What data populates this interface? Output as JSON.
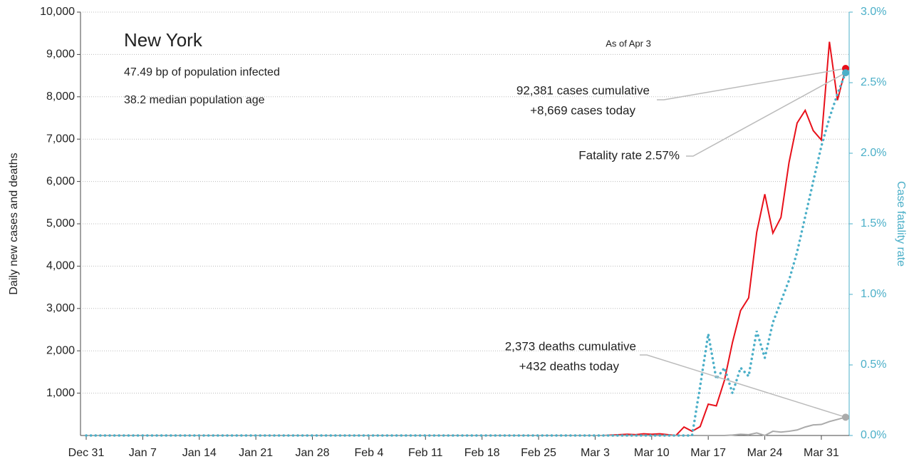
{
  "chart_data": {
    "type": "line",
    "title": "New York",
    "subtitle": [
      "47.49 bp of population infected",
      "38.2 median population age"
    ],
    "note": "As of Apr 3",
    "ylabel": "Daily new cases and deaths",
    "y2label": "Case fatality rate",
    "annotations": {
      "cases": [
        "92,381 cases cumulative",
        "+8,669 cases today"
      ],
      "rate": "Fatality rate 2.57%",
      "deaths": [
        "2,373 deaths cumulative",
        "+432 deaths today"
      ]
    },
    "categories": [
      "Dec 31",
      null,
      null,
      null,
      null,
      null,
      null,
      "Jan 7",
      null,
      null,
      null,
      null,
      null,
      null,
      "Jan 14",
      null,
      null,
      null,
      null,
      null,
      null,
      "Jan 21",
      null,
      null,
      null,
      null,
      null,
      null,
      "Jan 28",
      null,
      null,
      null,
      null,
      null,
      null,
      "Feb 4",
      null,
      null,
      null,
      null,
      null,
      null,
      "Feb 11",
      null,
      null,
      null,
      null,
      null,
      null,
      "Feb 18",
      null,
      null,
      null,
      null,
      null,
      null,
      "Feb 25",
      null,
      null,
      null,
      null,
      null,
      null,
      "Mar 3",
      null,
      null,
      null,
      null,
      null,
      null,
      "Mar 10",
      null,
      null,
      null,
      null,
      null,
      null,
      "Mar 17",
      null,
      null,
      null,
      null,
      null,
      null,
      "Mar 24",
      null,
      null,
      null,
      null,
      null,
      null,
      "Mar 31",
      null,
      null,
      null
    ],
    "series": [
      {
        "name": "Daily new cases",
        "color": "#e8101a",
        "style": "solid",
        "values": [
          0,
          0,
          0,
          0,
          0,
          0,
          0,
          0,
          0,
          0,
          0,
          0,
          0,
          0,
          0,
          0,
          0,
          0,
          0,
          0,
          0,
          0,
          0,
          0,
          0,
          0,
          0,
          0,
          0,
          0,
          0,
          0,
          0,
          0,
          0,
          0,
          0,
          0,
          0,
          0,
          0,
          0,
          0,
          0,
          0,
          0,
          0,
          0,
          0,
          0,
          0,
          0,
          0,
          0,
          0,
          0,
          0,
          0,
          0,
          0,
          0,
          0,
          0,
          0,
          0,
          10,
          20,
          30,
          20,
          40,
          30,
          40,
          20,
          0,
          200,
          100,
          210,
          740,
          700,
          1300,
          2200,
          2950,
          3250,
          4800,
          5700,
          4780,
          5150,
          6450,
          7380,
          7680,
          7200,
          6980,
          9300,
          7920,
          8669
        ]
      },
      {
        "name": "Daily new deaths",
        "color": "#aaaaaa",
        "style": "solid",
        "values": [
          0,
          0,
          0,
          0,
          0,
          0,
          0,
          0,
          0,
          0,
          0,
          0,
          0,
          0,
          0,
          0,
          0,
          0,
          0,
          0,
          0,
          0,
          0,
          0,
          0,
          0,
          0,
          0,
          0,
          0,
          0,
          0,
          0,
          0,
          0,
          0,
          0,
          0,
          0,
          0,
          0,
          0,
          0,
          0,
          0,
          0,
          0,
          0,
          0,
          0,
          0,
          0,
          0,
          0,
          0,
          0,
          0,
          0,
          0,
          0,
          0,
          0,
          0,
          0,
          0,
          0,
          0,
          0,
          0,
          0,
          0,
          0,
          0,
          0,
          0,
          0,
          0,
          0,
          0,
          0,
          10,
          30,
          20,
          60,
          0,
          100,
          80,
          100,
          130,
          200,
          250,
          260,
          330,
          380,
          432
        ]
      },
      {
        "name": "Case fatality rate",
        "color": "#4bafc8",
        "style": "dotted",
        "axis": "y2",
        "values": [
          0,
          0,
          0,
          0,
          0,
          0,
          0,
          0,
          0,
          0,
          0,
          0,
          0,
          0,
          0,
          0,
          0,
          0,
          0,
          0,
          0,
          0,
          0,
          0,
          0,
          0,
          0,
          0,
          0,
          0,
          0,
          0,
          0,
          0,
          0,
          0,
          0,
          0,
          0,
          0,
          0,
          0,
          0,
          0,
          0,
          0,
          0,
          0,
          0,
          0,
          0,
          0,
          0,
          0,
          0,
          0,
          0,
          0,
          0,
          0,
          0,
          0,
          0,
          0,
          0,
          0,
          0,
          0,
          0,
          0,
          0,
          0,
          0,
          0,
          0,
          0,
          0.35,
          0.72,
          0.4,
          0.48,
          0.3,
          0.48,
          0.42,
          0.74,
          0.55,
          0.8,
          0.95,
          1.1,
          1.3,
          1.55,
          1.8,
          2.05,
          2.25,
          2.42,
          2.57
        ]
      }
    ],
    "ylim": [
      0,
      10000
    ],
    "yticks": [
      {
        "value": 1000,
        "label": "1,000"
      },
      {
        "value": 2000,
        "label": "2,000"
      },
      {
        "value": 3000,
        "label": "3,000"
      },
      {
        "value": 4000,
        "label": "4,000"
      },
      {
        "value": 5000,
        "label": "5,000"
      },
      {
        "value": 6000,
        "label": "6,000"
      },
      {
        "value": 7000,
        "label": "7,000"
      },
      {
        "value": 8000,
        "label": "8,000"
      },
      {
        "value": 9000,
        "label": "9,000"
      },
      {
        "value": 10000,
        "label": "10,000"
      }
    ],
    "y2lim": [
      0,
      3
    ],
    "y2ticks": [
      {
        "value": 0,
        "label": "0.0%"
      },
      {
        "value": 0.5,
        "label": "0.5%"
      },
      {
        "value": 1,
        "label": "1.0%"
      },
      {
        "value": 1.5,
        "label": "1.5%"
      },
      {
        "value": 2,
        "label": "2.0%"
      },
      {
        "value": 2.5,
        "label": "2.5%"
      },
      {
        "value": 3,
        "label": "3.0%"
      }
    ],
    "grid": true
  }
}
